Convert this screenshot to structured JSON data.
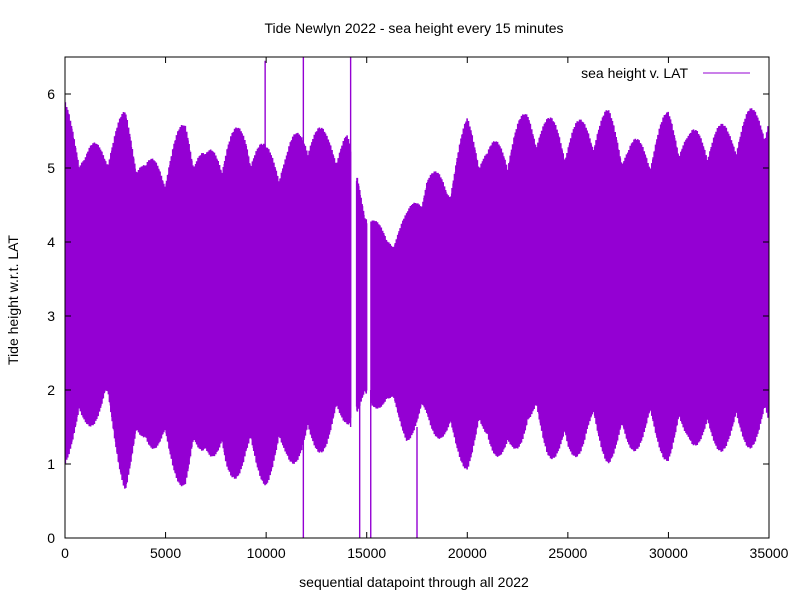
{
  "chart_data": {
    "type": "line",
    "title": "Tide Newlyn 2022 - sea height every 15 minutes",
    "xlabel": "sequential datapoint through all 2022",
    "ylabel": "Tide height w.r.t. LAT",
    "xlim": [
      0,
      35000
    ],
    "ylim": [
      0,
      6.5
    ],
    "xticks": [
      0,
      5000,
      10000,
      15000,
      20000,
      25000,
      30000,
      35000
    ],
    "yticks": [
      0,
      1,
      2,
      3,
      4,
      5,
      6
    ],
    "grid": false,
    "legend": "top-right",
    "color": "#9400d3",
    "series": [
      {
        "name": "sea height v. LAT",
        "envelope_x": [
          0,
          1000,
          2000,
          3000,
          4000,
          5000,
          6000,
          7000,
          8000,
          9000,
          10000,
          11000,
          12000,
          13000,
          14000,
          14500,
          15200,
          16000,
          17000,
          18000,
          19000,
          20000,
          21000,
          22000,
          23000,
          24000,
          25000,
          26000,
          27000,
          28000,
          29000,
          30000,
          31000,
          32000,
          33000,
          34000,
          35000
        ],
        "envelope_max": [
          5.9,
          5.3,
          5.4,
          5.8,
          5.1,
          5.2,
          5.7,
          5.2,
          5.5,
          5.6,
          5.3,
          5.3,
          5.7,
          5.5,
          5.5,
          5.0,
          4.4,
          4.1,
          4.4,
          5.0,
          4.9,
          5.7,
          5.3,
          5.5,
          5.8,
          5.7,
          5.6,
          5.7,
          5.8,
          5.4,
          5.4,
          5.8,
          5.5,
          5.6,
          5.6,
          5.8,
          5.9
        ],
        "envelope_min": [
          1.0,
          1.4,
          1.7,
          0.6,
          1.3,
          1.0,
          0.6,
          1.2,
          0.7,
          0.9,
          0.7,
          1.0,
          1.0,
          1.2,
          1.5,
          1.6,
          1.7,
          1.8,
          1.3,
          1.5,
          1.2,
          0.9,
          1.3,
          0.8,
          1.5,
          1.1,
          0.9,
          1.3,
          1.0,
          1.1,
          1.3,
          1.0,
          1.3,
          1.1,
          1.2,
          1.2,
          1.3
        ],
        "gaps": [
          [
            14200,
            14500
          ],
          [
            15000,
            15200
          ]
        ],
        "spikes": [
          {
            "x": 9950,
            "ymin": 2.5,
            "ymax": 6.45
          },
          {
            "x": 11850,
            "ymin": 0.0,
            "ymax": 6.5
          },
          {
            "x": 14200,
            "ymin": 1.5,
            "ymax": 6.5
          },
          {
            "x": 14650,
            "ymin": 0.0,
            "ymax": 2.0
          },
          {
            "x": 15200,
            "ymin": 0.0,
            "ymax": 2.0
          },
          {
            "x": 17500,
            "ymin": 0.0,
            "ymax": 1.5
          }
        ]
      }
    ]
  }
}
